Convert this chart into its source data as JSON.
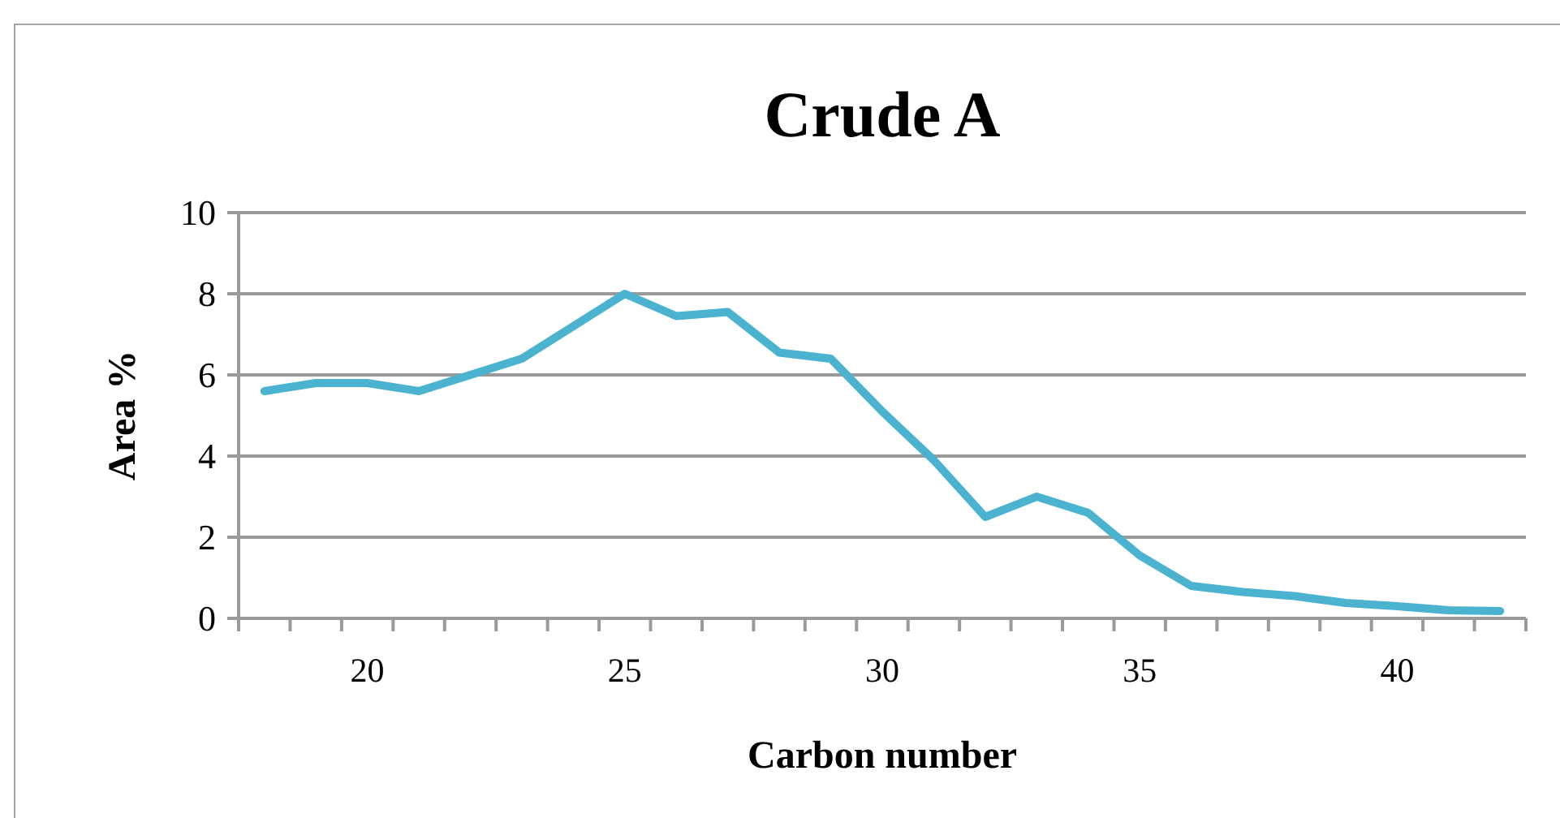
{
  "chart_data": {
    "type": "line",
    "title": "Crude A",
    "xlabel": "Carbon number",
    "ylabel": "Area %",
    "categories": [
      null,
      null,
      "20",
      null,
      null,
      null,
      null,
      "25",
      null,
      null,
      null,
      null,
      "30",
      null,
      null,
      null,
      null,
      "35",
      null,
      null,
      null,
      null,
      "40",
      null,
      null
    ],
    "series": [
      {
        "color": "#4bb3cf",
        "values": [
          5.6,
          5.8,
          5.8,
          5.6,
          6.0,
          6.4,
          7.2,
          8.0,
          7.45,
          7.55,
          6.55,
          6.4,
          5.1,
          3.9,
          2.5,
          3.0,
          2.6,
          1.55,
          0.8,
          0.65,
          0.55,
          0.38,
          0.3,
          0.2,
          0.18
        ]
      }
    ],
    "ylim": [
      0,
      10
    ],
    "yticks": [
      0,
      2,
      4,
      6,
      8,
      10
    ],
    "grid": "y",
    "marker": "none",
    "line_style": "solid"
  }
}
